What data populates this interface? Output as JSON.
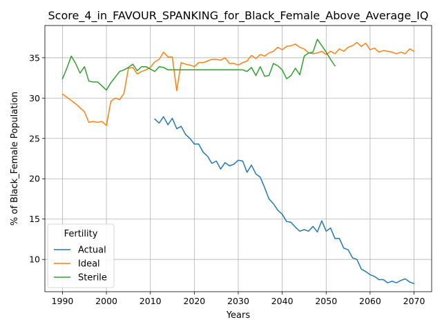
{
  "chart_data": {
    "type": "line",
    "title": "Score_4_in_FAVOUR_SPANKING_for_Black_Female_Above_Average_IQ",
    "xlabel": "Years",
    "ylabel": "% of Black_Female Population",
    "xlim": [
      1986,
      2074
    ],
    "ylim": [
      6,
      39
    ],
    "xticks": [
      1990,
      2000,
      2010,
      2020,
      2030,
      2040,
      2050,
      2060,
      2070
    ],
    "yticks": [
      10,
      15,
      20,
      25,
      30,
      35
    ],
    "grid": true,
    "legend": {
      "title": "Fertility",
      "position": "lower-left"
    },
    "series": [
      {
        "name": "Actual",
        "color": "#1f77b4",
        "x": [
          2011,
          2012,
          2013,
          2014,
          2015,
          2016,
          2017,
          2018,
          2019,
          2020,
          2021,
          2022,
          2023,
          2024,
          2025,
          2026,
          2027,
          2028,
          2029,
          2030,
          2031,
          2032,
          2033,
          2034,
          2035,
          2036,
          2037,
          2038,
          2039,
          2040,
          2041,
          2042,
          2043,
          2044,
          2045,
          2046,
          2047,
          2048,
          2049,
          2050,
          2051,
          2052,
          2053,
          2054,
          2055,
          2056,
          2057,
          2058,
          2059,
          2060,
          2061,
          2062,
          2063,
          2064,
          2065,
          2066,
          2067,
          2068,
          2069,
          2070
        ],
        "y": [
          27.4,
          26.9,
          27.7,
          26.7,
          27.5,
          26.2,
          26.5,
          25.5,
          25.0,
          24.3,
          24.3,
          23.3,
          22.8,
          21.9,
          22.2,
          21.2,
          22.0,
          21.6,
          21.8,
          22.3,
          22.2,
          20.8,
          21.7,
          20.6,
          20.2,
          18.9,
          17.5,
          16.9,
          16.1,
          15.6,
          14.7,
          14.6,
          14.0,
          13.5,
          13.7,
          13.5,
          14.1,
          13.4,
          14.8,
          13.5,
          13.9,
          12.6,
          12.6,
          11.4,
          11.2,
          10.2,
          10.0,
          8.8,
          8.5,
          8.1,
          7.9,
          7.5,
          7.5,
          7.1,
          7.3,
          7.1,
          7.4,
          7.6,
          7.2,
          7.0
        ]
      },
      {
        "name": "Ideal",
        "color": "#ff7f0e",
        "x": [
          1990,
          1991,
          1992,
          1993,
          1994,
          1995,
          1996,
          1997,
          1998,
          1999,
          2000,
          2001,
          2002,
          2003,
          2004,
          2005,
          2006,
          2007,
          2008,
          2009,
          2010,
          2011,
          2012,
          2013,
          2014,
          2015,
          2016,
          2017,
          2018,
          2019,
          2020,
          2021,
          2022,
          2023,
          2024,
          2025,
          2026,
          2027,
          2028,
          2029,
          2030,
          2031,
          2032,
          2033,
          2034,
          2035,
          2036,
          2037,
          2038,
          2039,
          2040,
          2041,
          2042,
          2043,
          2044,
          2045,
          2046,
          2047,
          2048,
          2049,
          2050,
          2051,
          2052,
          2053,
          2054,
          2055,
          2056,
          2057,
          2058,
          2059,
          2060,
          2061,
          2062,
          2063,
          2064,
          2065,
          2066,
          2067,
          2068,
          2069,
          2070
        ],
        "y": [
          30.5,
          30.1,
          29.7,
          29.3,
          28.8,
          28.3,
          27.0,
          27.1,
          27.0,
          27.1,
          26.6,
          29.6,
          30.0,
          29.8,
          30.6,
          33.7,
          33.8,
          33.0,
          33.3,
          33.5,
          33.8,
          34.5,
          34.8,
          35.7,
          35.1,
          35.1,
          30.9,
          34.4,
          34.2,
          34.1,
          33.9,
          34.4,
          34.4,
          34.6,
          34.8,
          34.8,
          34.7,
          35.0,
          34.3,
          34.3,
          34.1,
          34.4,
          34.6,
          35.3,
          34.9,
          35.4,
          35.2,
          35.6,
          35.8,
          36.3,
          36.0,
          36.4,
          36.5,
          36.7,
          36.3,
          36.1,
          35.6,
          35.5,
          35.6,
          35.8,
          35.4,
          35.8,
          35.5,
          36.1,
          35.8,
          36.3,
          36.5,
          36.9,
          36.4,
          36.8,
          36.0,
          36.2,
          35.7,
          35.9,
          35.8,
          35.7,
          35.5,
          35.7,
          35.5,
          36.1,
          35.8
        ]
      },
      {
        "name": "Sterile",
        "color": "#2ca02c",
        "x": [
          1990,
          1991,
          1992,
          1993,
          1994,
          1995,
          1996,
          1997,
          1998,
          1999,
          2000,
          2001,
          2002,
          2003,
          2004,
          2005,
          2006,
          2007,
          2008,
          2009,
          2010,
          2011,
          2012,
          2013,
          2014,
          2015,
          2016,
          2017,
          2018,
          2019,
          2020,
          2021,
          2022,
          2023,
          2024,
          2025,
          2026,
          2027,
          2028,
          2029,
          2030,
          2031,
          2032,
          2033,
          2034,
          2035,
          2036,
          2037,
          2038,
          2039,
          2040,
          2041,
          2042,
          2043,
          2044,
          2045,
          2046,
          2047,
          2048,
          2049,
          2050,
          2051,
          2052
        ],
        "y": [
          32.4,
          33.7,
          35.2,
          34.3,
          33.1,
          33.9,
          32.1,
          32.0,
          32.0,
          31.5,
          31.0,
          31.9,
          32.6,
          33.3,
          33.5,
          33.8,
          34.2,
          33.4,
          33.9,
          33.9,
          33.6,
          33.3,
          33.9,
          33.8,
          33.5,
          33.5,
          33.5,
          33.5,
          33.5,
          33.5,
          33.5,
          33.5,
          33.5,
          33.5,
          33.5,
          33.5,
          33.5,
          33.5,
          33.5,
          33.5,
          33.5,
          33.5,
          33.3,
          33.8,
          32.8,
          33.9,
          32.7,
          32.8,
          34.3,
          34.0,
          33.5,
          32.4,
          32.8,
          33.7,
          32.9,
          35.2,
          35.6,
          35.7,
          37.3,
          36.5,
          35.7,
          34.8,
          34.0
        ]
      }
    ]
  }
}
